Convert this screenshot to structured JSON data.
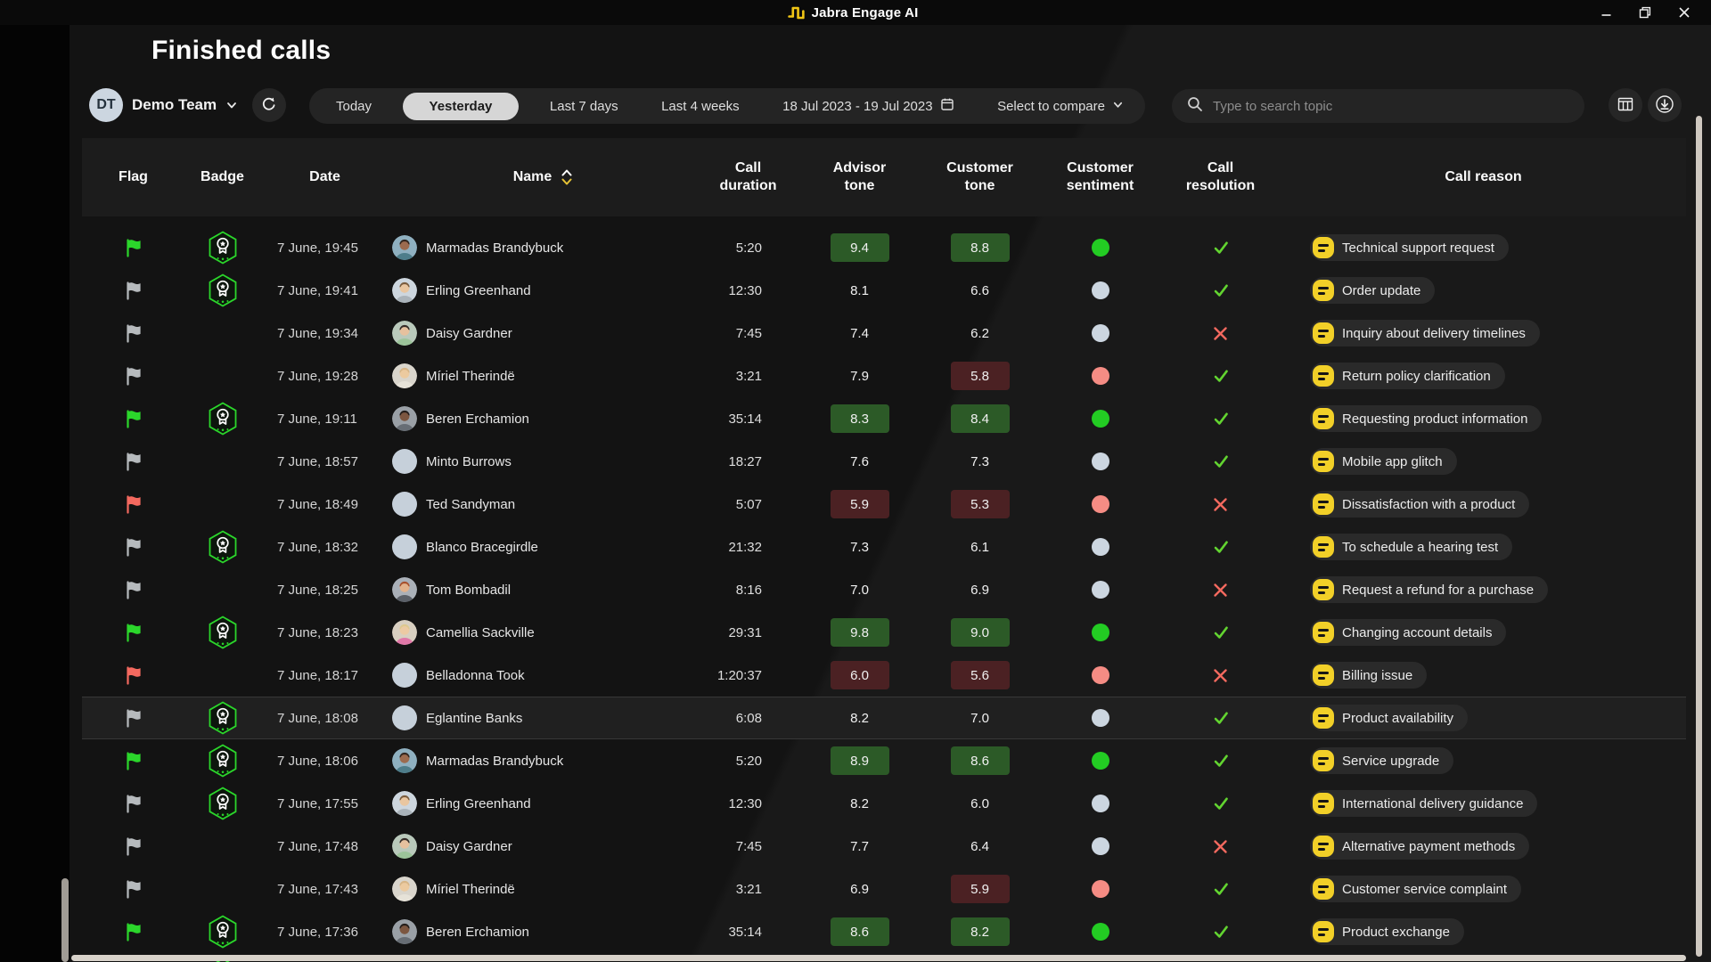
{
  "window": {
    "title": "Jabra Engage AI",
    "controls": {
      "minimize": "minimize",
      "restore": "restore",
      "close": "close"
    }
  },
  "page": {
    "title": "Finished calls"
  },
  "toolbar": {
    "team": {
      "initials": "DT",
      "name": "Demo Team"
    },
    "filters": {
      "today": "Today",
      "yesterday": "Yesterday",
      "last7": "Last 7 days",
      "last4": "Last 4 weeks",
      "date_range": "18 Jul 2023 - 19 Jul 2023",
      "compare": "Select to compare"
    },
    "selected_filter": "Yesterday",
    "search": {
      "placeholder": "Type to search topic",
      "value": ""
    }
  },
  "table": {
    "columns": [
      "Flag",
      "Badge",
      "Date",
      "Name",
      "Call duration",
      "Advisor tone",
      "Customer tone",
      "Customer sentiment",
      "Call resolution",
      "Call reason"
    ],
    "sorted_by": "Name",
    "rows": [
      {
        "flag": "green",
        "badge": true,
        "date": "7 June, 19:45",
        "name": "Marmadas Brandybuck",
        "avatar": {
          "type": "photo",
          "skin": "#9c6b4f",
          "hair": "#33261f",
          "top": "#4e7d8a",
          "bg": "#8fb0c0"
        },
        "duration": "5:20",
        "advisor_tone": {
          "value": "9.4",
          "level": "positive"
        },
        "customer_tone": {
          "value": "8.8",
          "level": "positive"
        },
        "sentiment": "positive",
        "resolved": true,
        "reason": "Technical support request"
      },
      {
        "flag": "grey",
        "badge": true,
        "date": "7 June, 19:41",
        "name": "Erling Greenhand",
        "avatar": {
          "type": "photo",
          "skin": "#e9c6a0",
          "hair": "#7a5c3e",
          "top": "#aab3ba",
          "bg": "#cdd6de"
        },
        "duration": "12:30",
        "advisor_tone": {
          "value": "8.1",
          "level": "neutral"
        },
        "customer_tone": {
          "value": "6.6",
          "level": "neutral"
        },
        "sentiment": "neutral",
        "resolved": true,
        "reason": "Order update"
      },
      {
        "flag": "grey",
        "badge": false,
        "date": "7 June, 19:34",
        "name": "Daisy Gardner",
        "avatar": {
          "type": "photo",
          "skin": "#e6c19e",
          "hair": "#352c28",
          "top": "#9cc49a",
          "bg": "#b9c9bb"
        },
        "duration": "7:45",
        "advisor_tone": {
          "value": "7.4",
          "level": "neutral"
        },
        "customer_tone": {
          "value": "6.2",
          "level": "neutral"
        },
        "sentiment": "neutral",
        "resolved": false,
        "reason": "Inquiry about delivery timelines"
      },
      {
        "flag": "grey",
        "badge": false,
        "date": "7 June, 19:28",
        "name": "Míriel Therindë",
        "avatar": {
          "type": "photo",
          "skin": "#ecca9f",
          "hair": "#d7b586",
          "top": "#e6e2d8",
          "bg": "#d9d5cc"
        },
        "duration": "3:21",
        "advisor_tone": {
          "value": "7.9",
          "level": "neutral"
        },
        "customer_tone": {
          "value": "5.8",
          "level": "negative"
        },
        "sentiment": "negative",
        "resolved": true,
        "reason": "Return policy clarification"
      },
      {
        "flag": "green",
        "badge": true,
        "date": "7 June, 19:11",
        "name": "Beren Erchamion",
        "avatar": {
          "type": "photo",
          "skin": "#7c5640",
          "hair": "#241d1a",
          "top": "#676d74",
          "bg": "#9aa0a6"
        },
        "duration": "35:14",
        "advisor_tone": {
          "value": "8.3",
          "level": "positive"
        },
        "customer_tone": {
          "value": "8.4",
          "level": "positive"
        },
        "sentiment": "positive",
        "resolved": true,
        "reason": "Requesting product information"
      },
      {
        "flag": "grey",
        "badge": false,
        "date": "7 June, 18:57",
        "name": "Minto Burrows",
        "avatar": {
          "type": "empty"
        },
        "duration": "18:27",
        "advisor_tone": {
          "value": "7.6",
          "level": "neutral"
        },
        "customer_tone": {
          "value": "7.3",
          "level": "neutral"
        },
        "sentiment": "neutral",
        "resolved": true,
        "reason": "Mobile app glitch"
      },
      {
        "flag": "red",
        "badge": false,
        "date": "7 June, 18:49",
        "name": "Ted Sandyman",
        "avatar": {
          "type": "empty"
        },
        "duration": "5:07",
        "advisor_tone": {
          "value": "5.9",
          "level": "negative"
        },
        "customer_tone": {
          "value": "5.3",
          "level": "negative"
        },
        "sentiment": "negative",
        "resolved": false,
        "reason": "Dissatisfaction with a product"
      },
      {
        "flag": "grey",
        "badge": true,
        "date": "7 June, 18:32",
        "name": "Blanco Bracegirdle",
        "avatar": {
          "type": "empty"
        },
        "duration": "21:32",
        "advisor_tone": {
          "value": "7.3",
          "level": "neutral"
        },
        "customer_tone": {
          "value": "6.1",
          "level": "neutral"
        },
        "sentiment": "neutral",
        "resolved": true,
        "reason": "To schedule a hearing test"
      },
      {
        "flag": "grey",
        "badge": false,
        "date": "7 June, 18:25",
        "name": "Tom Bombadil",
        "avatar": {
          "type": "photo",
          "skin": "#e2b28c",
          "hair": "#a8502c",
          "top": "#5b6068",
          "bg": "#aab0b8"
        },
        "duration": "8:16",
        "advisor_tone": {
          "value": "7.0",
          "level": "neutral"
        },
        "customer_tone": {
          "value": "6.9",
          "level": "neutral"
        },
        "sentiment": "neutral",
        "resolved": false,
        "reason": "Request a refund for a purchase"
      },
      {
        "flag": "green",
        "badge": true,
        "date": "7 June, 18:23",
        "name": "Camellia Sackville",
        "avatar": {
          "type": "photo",
          "skin": "#eccaa3",
          "hair": "#ddc88e",
          "top": "#e078a8",
          "bg": "#d8cfc0"
        },
        "duration": "29:31",
        "advisor_tone": {
          "value": "9.8",
          "level": "positive"
        },
        "customer_tone": {
          "value": "9.0",
          "level": "positive"
        },
        "sentiment": "positive",
        "resolved": true,
        "reason": "Changing account details"
      },
      {
        "flag": "red",
        "badge": false,
        "date": "7 June, 18:17",
        "name": "Belladonna Took",
        "avatar": {
          "type": "empty"
        },
        "duration": "1:20:37",
        "advisor_tone": {
          "value": "6.0",
          "level": "negative"
        },
        "customer_tone": {
          "value": "5.6",
          "level": "negative"
        },
        "sentiment": "negative",
        "resolved": false,
        "reason": "Billing issue"
      },
      {
        "flag": "grey",
        "badge": true,
        "date": "7 June, 18:08",
        "name": "Eglantine Banks",
        "avatar": {
          "type": "empty"
        },
        "duration": "6:08",
        "advisor_tone": {
          "value": "8.2",
          "level": "neutral"
        },
        "customer_tone": {
          "value": "7.0",
          "level": "neutral"
        },
        "sentiment": "neutral",
        "resolved": true,
        "reason": "Product availability",
        "highlighted": true
      },
      {
        "flag": "green",
        "badge": true,
        "date": "7 June, 18:06",
        "name": "Marmadas Brandybuck",
        "avatar": {
          "type": "photo",
          "skin": "#9c6b4f",
          "hair": "#33261f",
          "top": "#4e7d8a",
          "bg": "#8fb0c0"
        },
        "duration": "5:20",
        "advisor_tone": {
          "value": "8.9",
          "level": "positive"
        },
        "customer_tone": {
          "value": "8.6",
          "level": "positive"
        },
        "sentiment": "positive",
        "resolved": true,
        "reason": "Service upgrade"
      },
      {
        "flag": "grey",
        "badge": true,
        "date": "7 June, 17:55",
        "name": "Erling Greenhand",
        "avatar": {
          "type": "photo",
          "skin": "#e9c6a0",
          "hair": "#7a5c3e",
          "top": "#aab3ba",
          "bg": "#cdd6de"
        },
        "duration": "12:30",
        "advisor_tone": {
          "value": "8.2",
          "level": "neutral"
        },
        "customer_tone": {
          "value": "6.0",
          "level": "neutral"
        },
        "sentiment": "neutral",
        "resolved": true,
        "reason": "International delivery guidance"
      },
      {
        "flag": "grey",
        "badge": false,
        "date": "7 June, 17:48",
        "name": "Daisy Gardner",
        "avatar": {
          "type": "photo",
          "skin": "#e6c19e",
          "hair": "#352c28",
          "top": "#9cc49a",
          "bg": "#b9c9bb"
        },
        "duration": "7:45",
        "advisor_tone": {
          "value": "7.7",
          "level": "neutral"
        },
        "customer_tone": {
          "value": "6.4",
          "level": "neutral"
        },
        "sentiment": "neutral",
        "resolved": false,
        "reason": "Alternative payment methods"
      },
      {
        "flag": "grey",
        "badge": false,
        "date": "7 June, 17:43",
        "name": "Míriel Therindë",
        "avatar": {
          "type": "photo",
          "skin": "#ecca9f",
          "hair": "#d7b586",
          "top": "#e6e2d8",
          "bg": "#d9d5cc"
        },
        "duration": "3:21",
        "advisor_tone": {
          "value": "6.9",
          "level": "neutral"
        },
        "customer_tone": {
          "value": "5.9",
          "level": "negative"
        },
        "sentiment": "negative",
        "resolved": true,
        "reason": "Customer service complaint"
      },
      {
        "flag": "green",
        "badge": true,
        "date": "7 June, 17:36",
        "name": "Beren Erchamion",
        "avatar": {
          "type": "photo",
          "skin": "#7c5640",
          "hair": "#241d1a",
          "top": "#676d74",
          "bg": "#9aa0a6"
        },
        "duration": "35:14",
        "advisor_tone": {
          "value": "8.6",
          "level": "positive"
        },
        "customer_tone": {
          "value": "8.2",
          "level": "positive"
        },
        "sentiment": "positive",
        "resolved": true,
        "reason": "Product exchange"
      },
      {
        "partial": true,
        "badge": true
      }
    ]
  },
  "colors": {
    "accent_yellow": "#f2d028",
    "flag_green": "#2bd62b",
    "flag_grey": "#b6babd",
    "flag_red": "#f4695f",
    "tone_positive_bg": "#2c5a27",
    "tone_negative_bg": "#4b2123",
    "sentiment_positive": "#23cc23",
    "sentiment_neutral": "#ccd6e0",
    "sentiment_negative": "#f58c84",
    "resolution_yes": "#62d430",
    "resolution_no": "#f4695f",
    "badge_outline": "#2bd62b",
    "selected_segment_bg": "#d6d6d6"
  }
}
